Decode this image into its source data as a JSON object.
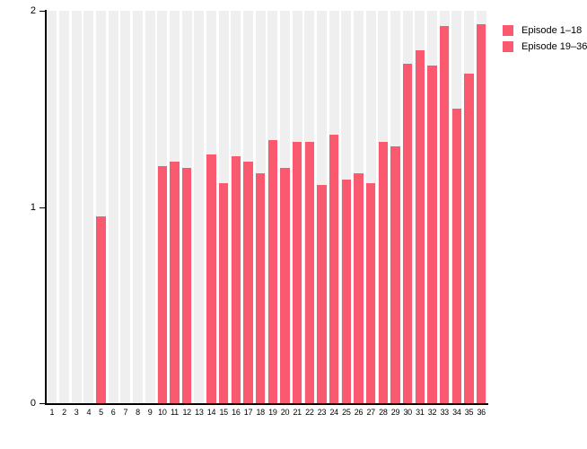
{
  "chart_data": {
    "type": "bar",
    "title": "",
    "xlabel": "",
    "ylabel": "",
    "categories": [
      "1",
      "2",
      "3",
      "4",
      "5",
      "6",
      "7",
      "8",
      "9",
      "10",
      "11",
      "12",
      "13",
      "14",
      "15",
      "16",
      "17",
      "18",
      "19",
      "20",
      "21",
      "22",
      "23",
      "24",
      "25",
      "26",
      "27",
      "28",
      "29",
      "30",
      "31",
      "32",
      "33",
      "34",
      "35",
      "36"
    ],
    "values": [
      0,
      0,
      0,
      0,
      0.95,
      0,
      0,
      0,
      0,
      1.21,
      1.23,
      1.2,
      0,
      1.27,
      1.12,
      1.26,
      1.23,
      1.17,
      1.34,
      1.2,
      1.33,
      1.33,
      1.11,
      1.37,
      1.14,
      1.17,
      1.12,
      1.33,
      1.31,
      1.73,
      1.8,
      1.72,
      1.92,
      1.5,
      1.68,
      1.93
    ],
    "series": [
      {
        "name": "Episode 1–18",
        "color": "#fa5a70",
        "category_range": [
          1,
          18
        ]
      },
      {
        "name": "Episode 19–36",
        "color": "#fa5a70",
        "category_range": [
          19,
          36
        ]
      }
    ],
    "ylim": [
      0,
      2
    ],
    "yticks": [
      "0",
      "1",
      "2"
    ],
    "grid": "off",
    "background_stripes": true,
    "legend_position": "top-right"
  },
  "colors": {
    "bar": "#fa5a70",
    "stripe": "#efefef",
    "axis": "#000000",
    "text": "#000000",
    "background": "#ffffff"
  }
}
